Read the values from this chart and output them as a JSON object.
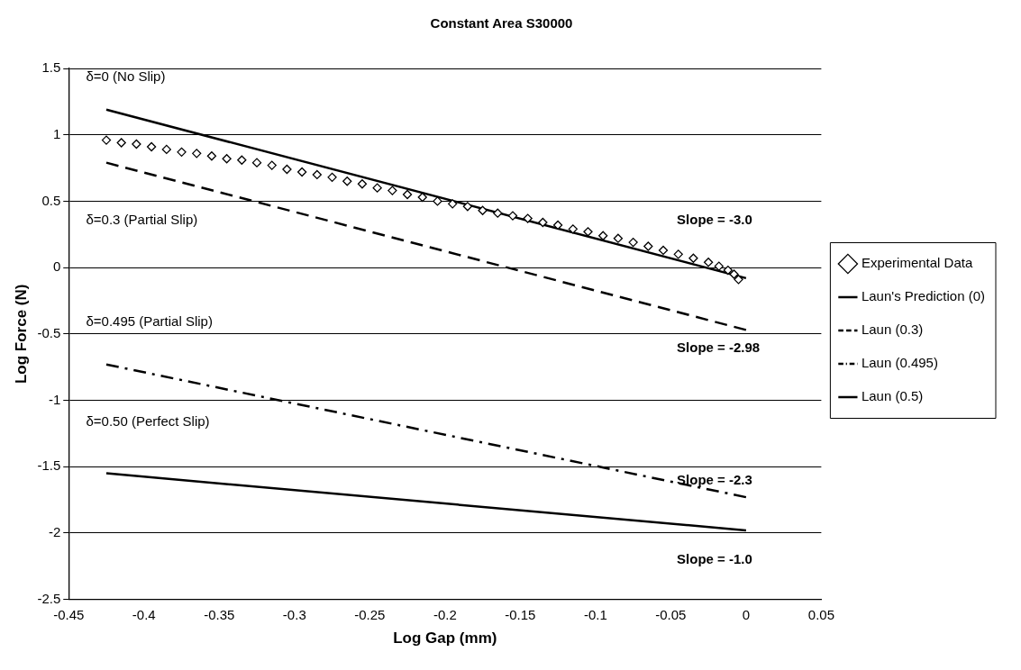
{
  "chart_data": {
    "type": "line",
    "title": "Constant Area S30000",
    "xlabel": "Log Gap (mm)",
    "ylabel": "Log Force (N)",
    "xlim": [
      -0.45,
      0.05
    ],
    "xticks": [
      -0.45,
      -0.4,
      -0.35,
      -0.3,
      -0.25,
      -0.2,
      -0.15,
      -0.1,
      -0.05,
      0,
      0.05
    ],
    "ylim": [
      -2.5,
      1.5
    ],
    "yticks": [
      -2.5,
      -2,
      -1.5,
      -1,
      -0.5,
      0,
      0.5,
      1,
      1.5
    ],
    "grid": "y",
    "legend": "right",
    "series": [
      {
        "name": "Experimental Data",
        "type": "scatter",
        "marker": "diamond",
        "color": "#000000",
        "x": [
          -0.425,
          -0.415,
          -0.405,
          -0.395,
          -0.385,
          -0.375,
          -0.365,
          -0.355,
          -0.345,
          -0.335,
          -0.325,
          -0.315,
          -0.305,
          -0.295,
          -0.285,
          -0.275,
          -0.265,
          -0.255,
          -0.245,
          -0.235,
          -0.225,
          -0.215,
          -0.205,
          -0.195,
          -0.185,
          -0.175,
          -0.165,
          -0.155,
          -0.145,
          -0.135,
          -0.125,
          -0.115,
          -0.105,
          -0.095,
          -0.085,
          -0.075,
          -0.065,
          -0.055,
          -0.045,
          -0.035,
          -0.025,
          -0.018,
          -0.012,
          -0.008,
          -0.005
        ],
        "values": [
          0.96,
          0.94,
          0.93,
          0.91,
          0.89,
          0.87,
          0.86,
          0.84,
          0.82,
          0.81,
          0.79,
          0.77,
          0.74,
          0.72,
          0.7,
          0.68,
          0.65,
          0.63,
          0.6,
          0.58,
          0.55,
          0.53,
          0.5,
          0.48,
          0.46,
          0.43,
          0.41,
          0.39,
          0.37,
          0.34,
          0.32,
          0.29,
          0.27,
          0.24,
          0.22,
          0.19,
          0.16,
          0.13,
          0.1,
          0.07,
          0.04,
          0.01,
          -0.02,
          -0.05,
          -0.09
        ]
      },
      {
        "name": "Laun's Prediction (0)",
        "type": "line",
        "marker": "none",
        "line_style": "solid",
        "color": "#000000",
        "x": [
          -0.425,
          0
        ],
        "values": [
          1.19,
          -0.08
        ]
      },
      {
        "name": "Laun (0.3)",
        "type": "line",
        "marker": "none",
        "line_style": "dashed",
        "color": "#000000",
        "x": [
          -0.425,
          0
        ],
        "values": [
          0.79,
          -0.47
        ]
      },
      {
        "name": "Laun (0.495)",
        "type": "line",
        "marker": "none",
        "line_style": "dashdot",
        "color": "#000000",
        "x": [
          -0.425,
          0
        ],
        "values": [
          -0.73,
          -1.73
        ]
      },
      {
        "name": "Laun (0.5)",
        "type": "line",
        "marker": "none",
        "line_style": "solid",
        "color": "#000000",
        "x": [
          -0.425,
          0
        ],
        "values": [
          -1.55,
          -1.98
        ]
      }
    ],
    "annotations": [
      "δ=0 (No Slip)",
      "δ=0.3 (Partial Slip)",
      "δ=0.495 (Partial Slip)",
      "δ=0.50 (Perfect Slip)",
      "Slope = -3.0",
      "Slope = -2.98",
      "Slope = -2.3",
      "Slope = -1.0"
    ]
  }
}
